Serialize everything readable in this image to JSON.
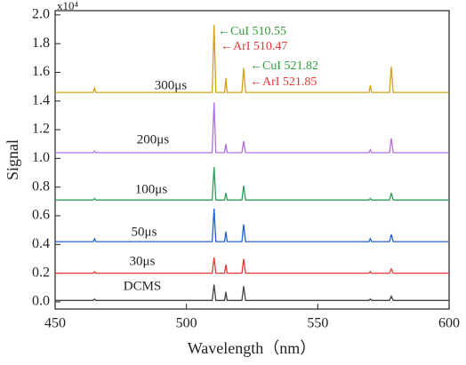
{
  "chart_data": {
    "type": "line",
    "y_multiplier": "x10⁴",
    "xlabel": "Wavelength（nm）",
    "ylabel": "Signal",
    "x": [
      450,
      464.5,
      465,
      465.5,
      509.8,
      510.5,
      511.2,
      514.5,
      515,
      515.5,
      521.1,
      521.8,
      522.5,
      569.5,
      570,
      570.5,
      577.3,
      578,
      578.7,
      600
    ],
    "series": [
      {
        "name": "DCMS",
        "color": "#444444",
        "values": [
          0.01,
          0.01,
          0.02,
          0.01,
          0.01,
          0.12,
          0.01,
          0.01,
          0.07,
          0.01,
          0.01,
          0.11,
          0.01,
          0.01,
          0.02,
          0.01,
          0.01,
          0.04,
          0.01,
          0.01
        ]
      },
      {
        "name": "30μs",
        "color": "#e53935",
        "values": [
          0.2,
          0.2,
          0.21,
          0.2,
          0.2,
          0.31,
          0.2,
          0.2,
          0.26,
          0.2,
          0.2,
          0.3,
          0.2,
          0.2,
          0.21,
          0.2,
          0.2,
          0.23,
          0.2,
          0.2
        ]
      },
      {
        "name": "50μs",
        "color": "#1f5fd6",
        "values": [
          0.42,
          0.42,
          0.44,
          0.42,
          0.42,
          0.65,
          0.42,
          0.42,
          0.49,
          0.42,
          0.42,
          0.54,
          0.42,
          0.42,
          0.44,
          0.42,
          0.42,
          0.47,
          0.42,
          0.42
        ]
      },
      {
        "name": "100μs",
        "color": "#2e9e5a",
        "values": [
          0.71,
          0.71,
          0.72,
          0.71,
          0.71,
          0.94,
          0.71,
          0.71,
          0.76,
          0.71,
          0.71,
          0.81,
          0.71,
          0.71,
          0.72,
          0.71,
          0.71,
          0.76,
          0.71,
          0.71
        ]
      },
      {
        "name": "200μs",
        "color": "#b070e0",
        "values": [
          1.04,
          1.04,
          1.05,
          1.04,
          1.04,
          1.39,
          1.04,
          1.04,
          1.1,
          1.04,
          1.04,
          1.12,
          1.04,
          1.04,
          1.06,
          1.04,
          1.04,
          1.14,
          1.04,
          1.04
        ]
      },
      {
        "name": "300μs",
        "color": "#d4a017",
        "values": [
          1.46,
          1.46,
          1.49,
          1.46,
          1.46,
          1.93,
          1.46,
          1.46,
          1.56,
          1.46,
          1.46,
          1.63,
          1.46,
          1.46,
          1.51,
          1.46,
          1.46,
          1.64,
          1.46,
          1.46
        ]
      }
    ],
    "annotations": [
      {
        "text": "←CuI 510.55",
        "color": "#2e9e3a"
      },
      {
        "text": "←ArI 510.47",
        "color": "#e53935"
      },
      {
        "text": "←CuI 521.82",
        "color": "#2e9e3a"
      },
      {
        "text": "←ArI 521.85",
        "color": "#e53935"
      }
    ],
    "xlim": [
      450,
      600
    ],
    "xticks": [
      450,
      500,
      550,
      600
    ],
    "ylim": [
      -0.05,
      2.03
    ],
    "yticks": [
      {
        "value": 0,
        "label": "0.0"
      },
      {
        "value": 0.2,
        "label": "0.2"
      },
      {
        "value": 0.4,
        "label": "0.4"
      },
      {
        "value": 0.6,
        "label": "0.6"
      },
      {
        "value": 0.8,
        "label": "0.8"
      },
      {
        "value": 1,
        "label": "1.0"
      },
      {
        "value": 1.2,
        "label": "1.2"
      },
      {
        "value": 1.4,
        "label": "1.4"
      },
      {
        "value": 1.6,
        "label": "1.6"
      },
      {
        "value": 1.8,
        "label": "1.8"
      },
      {
        "value": 2,
        "label": "2.0"
      }
    ]
  }
}
